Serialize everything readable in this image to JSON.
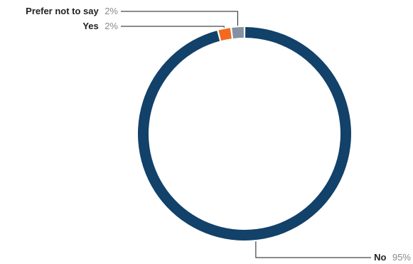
{
  "chart_data": {
    "type": "pie",
    "variant": "donut",
    "title": "",
    "categories": [
      "Prefer not to say",
      "Yes",
      "No"
    ],
    "values": [
      2,
      2,
      95
    ],
    "value_labels": [
      "2%",
      "2%",
      "95%"
    ],
    "colors": [
      "#8591a2",
      "#f26a21",
      "#124169"
    ],
    "legend": "none"
  }
}
